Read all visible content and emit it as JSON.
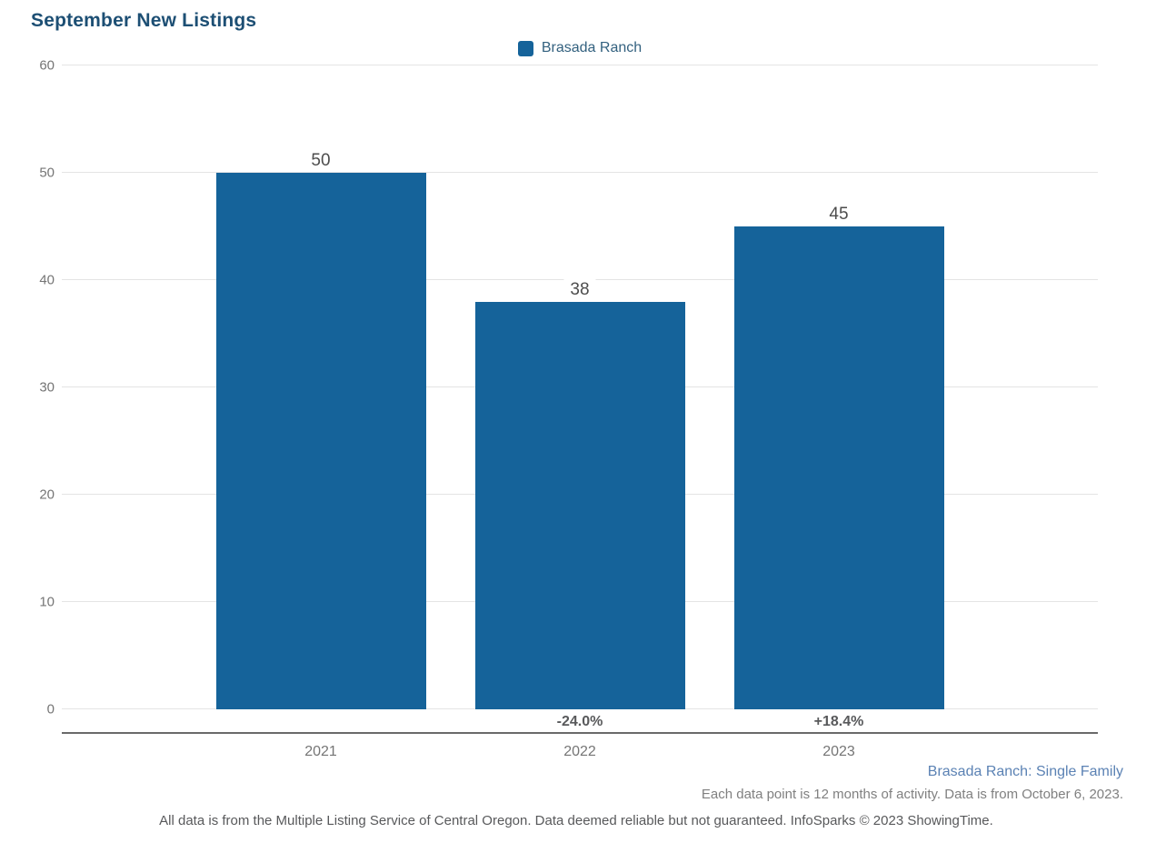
{
  "title": "September New Listings",
  "legend": {
    "label": "Brasada Ranch",
    "swatch_color": "#15639a"
  },
  "chart_data": {
    "type": "bar",
    "title": "September New Listings",
    "categories": [
      "2021",
      "2022",
      "2023"
    ],
    "series": [
      {
        "name": "Brasada Ranch",
        "values": [
          50,
          38,
          45
        ]
      }
    ],
    "value_labels": [
      "50",
      "38",
      "45"
    ],
    "pct_change_labels": [
      null,
      "-24.0%",
      "+18.4%"
    ],
    "xlabel": "",
    "ylabel": "",
    "ylim": [
      0,
      60
    ],
    "yticks": [
      0,
      10,
      20,
      30,
      40,
      50,
      60
    ],
    "grid": true,
    "legend_position": "top-center",
    "bar_color": "#15639a"
  },
  "footer": {
    "series_note": "Brasada Ranch: Single Family",
    "data_note": "Each data point is 12 months of activity. Data is from October 6, 2023.",
    "disclaimer": "All data is from the Multiple Listing Service of Central Oregon. Data deemed reliable but not guaranteed. InfoSparks © 2023 ShowingTime."
  },
  "colors": {
    "title": "#1d4f74",
    "bar": "#15639a",
    "legend_text": "#33617f",
    "axis_text": "#757575",
    "value_label": "#4d4d4d",
    "pct_label": "#58595b",
    "gridline": "#e4e4e4",
    "axis_line": "#6a6a6a",
    "footer_blue": "#5b82b4",
    "footer_gray": "#808080"
  }
}
